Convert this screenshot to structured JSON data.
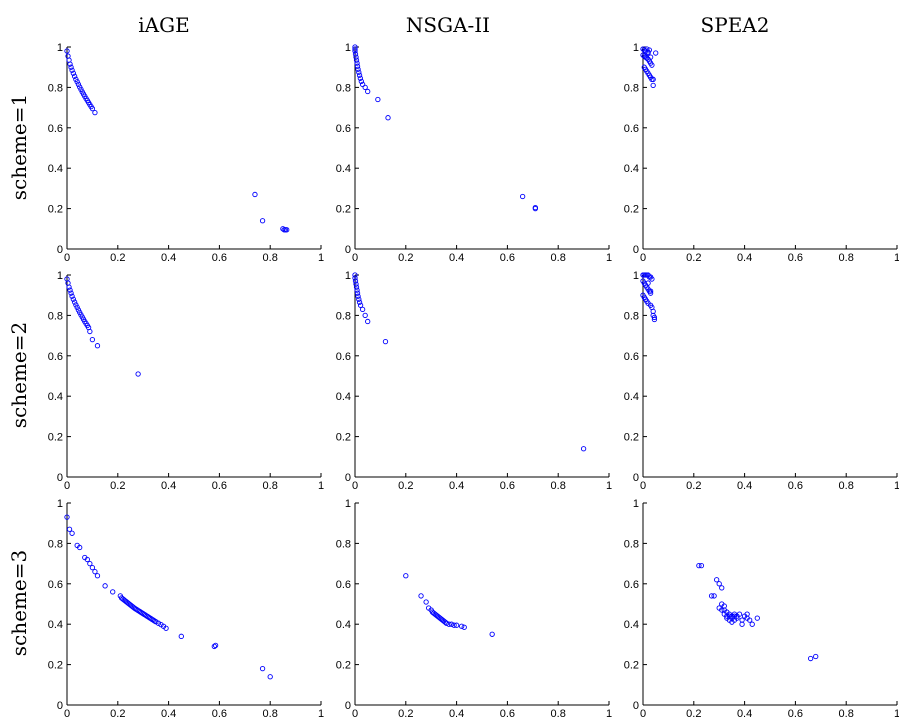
{
  "columns": [
    "iAGE",
    "NSGA-II",
    "SPEA2"
  ],
  "rows": [
    "scheme=1",
    "scheme=2",
    "scheme=3"
  ],
  "colors": {
    "points": "#0000ff",
    "axes": "#000000",
    "background": "#ffffff"
  },
  "chart_data": [
    {
      "type": "scatter",
      "column": "iAGE",
      "row": "scheme=1",
      "xlim": [
        0,
        1
      ],
      "ylim": [
        0,
        1
      ],
      "x": [
        0.0,
        0.004,
        0.008,
        0.012,
        0.016,
        0.02,
        0.025,
        0.03,
        0.035,
        0.04,
        0.045,
        0.05,
        0.055,
        0.06,
        0.065,
        0.07,
        0.075,
        0.08,
        0.085,
        0.09,
        0.095,
        0.1,
        0.11,
        0.74,
        0.77,
        0.85,
        0.855,
        0.86,
        0.865
      ],
      "y": [
        0.98,
        0.955,
        0.935,
        0.915,
        0.9,
        0.885,
        0.87,
        0.855,
        0.84,
        0.828,
        0.815,
        0.802,
        0.79,
        0.778,
        0.767,
        0.756,
        0.745,
        0.735,
        0.725,
        0.715,
        0.705,
        0.695,
        0.675,
        0.27,
        0.14,
        0.1,
        0.095,
        0.095,
        0.095
      ]
    },
    {
      "type": "scatter",
      "column": "NSGA-II",
      "row": "scheme=1",
      "xlim": [
        0,
        1
      ],
      "ylim": [
        0,
        1
      ],
      "x": [
        0.0,
        0.0,
        0.0,
        0.002,
        0.004,
        0.006,
        0.008,
        0.01,
        0.012,
        0.015,
        0.018,
        0.021,
        0.025,
        0.03,
        0.04,
        0.05,
        0.09,
        0.13,
        0.66,
        0.71,
        0.71
      ],
      "y": [
        1.0,
        0.99,
        0.98,
        0.965,
        0.95,
        0.935,
        0.92,
        0.905,
        0.89,
        0.875,
        0.86,
        0.845,
        0.83,
        0.815,
        0.8,
        0.78,
        0.74,
        0.65,
        0.26,
        0.2,
        0.205
      ]
    },
    {
      "type": "scatter",
      "column": "SPEA2",
      "row": "scheme=1",
      "xlim": [
        0,
        1
      ],
      "ylim": [
        0,
        1
      ],
      "x": [
        0.0,
        0.005,
        0.01,
        0.015,
        0.02,
        0.025,
        0.0,
        0.005,
        0.01,
        0.015,
        0.02,
        0.025,
        0.03,
        0.035,
        0.005,
        0.01,
        0.015,
        0.02,
        0.025,
        0.03,
        0.035,
        0.04,
        0.05,
        0.04,
        0.02,
        0.03
      ],
      "y": [
        0.99,
        0.985,
        0.98,
        0.99,
        0.975,
        0.985,
        0.96,
        0.955,
        0.95,
        0.945,
        0.94,
        0.93,
        0.92,
        0.91,
        0.9,
        0.89,
        0.88,
        0.87,
        0.86,
        0.85,
        0.84,
        0.84,
        0.97,
        0.81,
        0.97,
        0.95
      ]
    },
    {
      "type": "scatter",
      "column": "iAGE",
      "row": "scheme=2",
      "xlim": [
        0,
        1
      ],
      "ylim": [
        0,
        1
      ],
      "x": [
        0.0,
        0.004,
        0.008,
        0.012,
        0.016,
        0.02,
        0.025,
        0.03,
        0.035,
        0.04,
        0.045,
        0.05,
        0.055,
        0.06,
        0.065,
        0.07,
        0.075,
        0.08,
        0.085,
        0.09,
        0.1,
        0.12,
        0.28
      ],
      "y": [
        0.98,
        0.96,
        0.94,
        0.925,
        0.91,
        0.895,
        0.88,
        0.866,
        0.852,
        0.84,
        0.827,
        0.815,
        0.803,
        0.792,
        0.781,
        0.77,
        0.76,
        0.75,
        0.74,
        0.72,
        0.68,
        0.65,
        0.51
      ]
    },
    {
      "type": "scatter",
      "column": "NSGA-II",
      "row": "scheme=2",
      "xlim": [
        0,
        1
      ],
      "ylim": [
        0,
        1
      ],
      "x": [
        0.0,
        0.0,
        0.002,
        0.004,
        0.006,
        0.008,
        0.01,
        0.012,
        0.015,
        0.018,
        0.022,
        0.03,
        0.04,
        0.05,
        0.12,
        0.9
      ],
      "y": [
        1.0,
        0.985,
        0.97,
        0.955,
        0.94,
        0.925,
        0.91,
        0.895,
        0.88,
        0.865,
        0.85,
        0.83,
        0.8,
        0.77,
        0.67,
        0.14
      ]
    },
    {
      "type": "scatter",
      "column": "SPEA2",
      "row": "scheme=2",
      "xlim": [
        0,
        1
      ],
      "ylim": [
        0,
        1
      ],
      "x": [
        0.0,
        0.005,
        0.01,
        0.015,
        0.02,
        0.025,
        0.03,
        0.035,
        0.0,
        0.005,
        0.01,
        0.015,
        0.02,
        0.025,
        0.03,
        0.0,
        0.005,
        0.01,
        0.015,
        0.02,
        0.03,
        0.035,
        0.04,
        0.04,
        0.045,
        0.045,
        0.02,
        0.03
      ],
      "y": [
        1.0,
        1.0,
        1.0,
        1.0,
        1.0,
        0.99,
        0.99,
        0.98,
        0.97,
        0.96,
        0.95,
        0.94,
        0.93,
        0.92,
        0.91,
        0.9,
        0.89,
        0.88,
        0.87,
        0.86,
        0.85,
        0.84,
        0.82,
        0.8,
        0.79,
        0.78,
        0.96,
        0.92
      ]
    },
    {
      "type": "scatter",
      "column": "iAGE",
      "row": "scheme=3",
      "xlim": [
        0,
        1
      ],
      "ylim": [
        0,
        1
      ],
      "x": [
        0.0,
        0.01,
        0.02,
        0.04,
        0.05,
        0.07,
        0.08,
        0.09,
        0.1,
        0.11,
        0.12,
        0.15,
        0.18,
        0.21,
        0.215,
        0.22,
        0.225,
        0.23,
        0.235,
        0.24,
        0.245,
        0.25,
        0.255,
        0.26,
        0.265,
        0.27,
        0.275,
        0.28,
        0.285,
        0.29,
        0.295,
        0.3,
        0.305,
        0.31,
        0.315,
        0.32,
        0.325,
        0.33,
        0.335,
        0.34,
        0.345,
        0.35,
        0.36,
        0.37,
        0.38,
        0.39,
        0.45,
        0.58,
        0.585,
        0.77,
        0.8
      ],
      "y": [
        0.93,
        0.87,
        0.85,
        0.79,
        0.78,
        0.73,
        0.72,
        0.7,
        0.68,
        0.66,
        0.64,
        0.59,
        0.56,
        0.54,
        0.53,
        0.525,
        0.52,
        0.515,
        0.51,
        0.505,
        0.5,
        0.495,
        0.49,
        0.485,
        0.48,
        0.476,
        0.472,
        0.468,
        0.464,
        0.46,
        0.456,
        0.452,
        0.448,
        0.444,
        0.44,
        0.436,
        0.432,
        0.428,
        0.424,
        0.42,
        0.416,
        0.412,
        0.405,
        0.398,
        0.39,
        0.38,
        0.34,
        0.29,
        0.295,
        0.18,
        0.14
      ]
    },
    {
      "type": "scatter",
      "column": "NSGA-II",
      "row": "scheme=3",
      "xlim": [
        0,
        1
      ],
      "ylim": [
        0,
        1
      ],
      "x": [
        0.2,
        0.26,
        0.28,
        0.29,
        0.3,
        0.305,
        0.31,
        0.315,
        0.32,
        0.325,
        0.33,
        0.335,
        0.34,
        0.345,
        0.35,
        0.355,
        0.36,
        0.37,
        0.38,
        0.39,
        0.4,
        0.42,
        0.43,
        0.54
      ],
      "y": [
        0.64,
        0.54,
        0.51,
        0.48,
        0.47,
        0.46,
        0.455,
        0.45,
        0.445,
        0.44,
        0.435,
        0.43,
        0.425,
        0.42,
        0.415,
        0.41,
        0.405,
        0.4,
        0.4,
        0.395,
        0.395,
        0.39,
        0.385,
        0.35
      ]
    },
    {
      "type": "scatter",
      "column": "SPEA2",
      "row": "scheme=3",
      "xlim": [
        0,
        1
      ],
      "ylim": [
        0,
        1
      ],
      "x": [
        0.22,
        0.23,
        0.27,
        0.28,
        0.29,
        0.3,
        0.3,
        0.31,
        0.31,
        0.32,
        0.32,
        0.33,
        0.33,
        0.34,
        0.34,
        0.35,
        0.35,
        0.36,
        0.36,
        0.37,
        0.33,
        0.34,
        0.35,
        0.36,
        0.37,
        0.31,
        0.32,
        0.38,
        0.39,
        0.4,
        0.41,
        0.42,
        0.43,
        0.45,
        0.39,
        0.41,
        0.66,
        0.68
      ],
      "y": [
        0.69,
        0.69,
        0.54,
        0.54,
        0.62,
        0.6,
        0.48,
        0.58,
        0.47,
        0.47,
        0.45,
        0.44,
        0.43,
        0.44,
        0.42,
        0.43,
        0.41,
        0.44,
        0.42,
        0.43,
        0.46,
        0.45,
        0.44,
        0.45,
        0.44,
        0.5,
        0.49,
        0.45,
        0.42,
        0.44,
        0.43,
        0.42,
        0.4,
        0.43,
        0.4,
        0.45,
        0.23,
        0.24
      ]
    }
  ]
}
